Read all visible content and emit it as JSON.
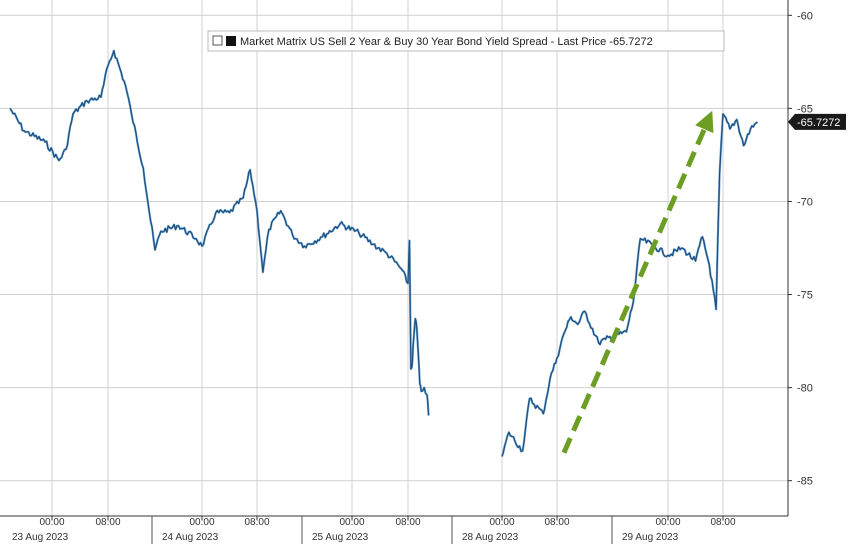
{
  "chart_data": {
    "type": "line",
    "title": "",
    "legend": {
      "text": "Market Matrix US Sell 2 Year & Buy 30 Year Bond Yield Spread - Last Price -65.7272",
      "placement": "top-center"
    },
    "last_price_label": "-65.7272",
    "last_price": -65.7272,
    "y_axis": {
      "side": "right",
      "ylim": [
        -85.5,
        -59.5
      ],
      "ticks": [
        -60,
        -65,
        -70,
        -75,
        -80,
        -85
      ],
      "tick_labels": [
        "-60",
        "-65",
        "-70",
        "-75",
        "-80",
        "-85"
      ]
    },
    "x_axis": {
      "ticks": [
        {
          "time": "23 Aug 2023 00:00",
          "label": "00:00"
        },
        {
          "time": "23 Aug 2023 08:00",
          "label": "08:00"
        },
        {
          "time": "24 Aug 2023 00:00",
          "label": "00:00"
        },
        {
          "time": "24 Aug 2023 08:00",
          "label": "08:00"
        },
        {
          "time": "25 Aug 2023 00:00",
          "label": "00:00"
        },
        {
          "time": "25 Aug 2023 08:00",
          "label": "08:00"
        },
        {
          "time": "28 Aug 2023 00:00",
          "label": "00:00"
        },
        {
          "time": "28 Aug 2023 08:00",
          "label": "08:00"
        },
        {
          "time": "29 Aug 2023 00:00",
          "label": "00:00"
        },
        {
          "time": "29 Aug 2023 08:00",
          "label": "08:00"
        }
      ],
      "date_labels": [
        "23 Aug 2023",
        "24 Aug 2023",
        "25 Aug 2023",
        "28 Aug 2023",
        "29 Aug 2023"
      ]
    },
    "grid": true,
    "series": [
      {
        "color": "#1f4e79",
        "points": [
          [
            "22 Aug 2023 18:00",
            -65.0
          ],
          [
            "22 Aug 2023 20:00",
            -66.2
          ],
          [
            "22 Aug 2023 23:00",
            -66.8
          ],
          [
            "23 Aug 2023 01:00",
            -67.8
          ],
          [
            "23 Aug 2023 02:00",
            -67.2
          ],
          [
            "23 Aug 2023 03:00",
            -65.3
          ],
          [
            "23 Aug 2023 05:00",
            -64.6
          ],
          [
            "23 Aug 2023 07:00",
            -64.4
          ],
          [
            "23 Aug 2023 08:00",
            -62.7
          ],
          [
            "23 Aug 2023 09:00",
            -61.9
          ],
          [
            "23 Aug 2023 11:00",
            -63.8
          ],
          [
            "23 Aug 2023 12:00",
            -65.3
          ],
          [
            "23 Aug 2023 14:00",
            -68.2
          ],
          [
            "23 Aug 2023 15:00",
            -70.5
          ],
          [
            "23 Aug 2023 16:00",
            -72.6
          ],
          [
            "23 Aug 2023 17:00",
            -71.6
          ],
          [
            "23 Aug 2023 20:00",
            -71.3
          ],
          [
            "23 Aug 2023 23:00",
            -72.0
          ],
          [
            "24 Aug 2023 00:00",
            -72.4
          ],
          [
            "24 Aug 2023 02:00",
            -70.6
          ],
          [
            "24 Aug 2023 04:00",
            -70.6
          ],
          [
            "24 Aug 2023 06:00",
            -69.8
          ],
          [
            "24 Aug 2023 07:00",
            -68.3
          ],
          [
            "24 Aug 2023 08:00",
            -70.5
          ],
          [
            "24 Aug 2023 09:00",
            -73.8
          ],
          [
            "24 Aug 2023 10:00",
            -71.5
          ],
          [
            "24 Aug 2023 12:00",
            -70.5
          ],
          [
            "24 Aug 2023 14:00",
            -71.8
          ],
          [
            "24 Aug 2023 16:00",
            -72.4
          ],
          [
            "24 Aug 2023 19:00",
            -71.9
          ],
          [
            "24 Aug 2023 22:00",
            -71.2
          ],
          [
            "25 Aug 2023 01:00",
            -71.7
          ],
          [
            "25 Aug 2023 03:00",
            -72.3
          ],
          [
            "25 Aug 2023 05:00",
            -72.8
          ],
          [
            "25 Aug 2023 07:00",
            -73.6
          ],
          [
            "25 Aug 2023 08:00",
            -74.4
          ],
          [
            "25 Aug 2023 09:00",
            -72.1
          ],
          [
            "25 Aug 2023 10:00",
            -79.0
          ],
          [
            "25 Aug 2023 11:00",
            -78.6
          ],
          [
            "25 Aug 2023 12:00",
            -77.2
          ],
          [
            "25 Aug 2023 13:00",
            -76.3
          ],
          [
            "25 Aug 2023 14:00",
            -76.8
          ],
          [
            "25 Aug 2023 15:00",
            -78.2
          ],
          [
            "25 Aug 2023 16:00",
            -79.8
          ],
          [
            "25 Aug 2023 17:00",
            -80.2
          ],
          [
            "25 Aug 2023 19:00",
            -80.0
          ],
          [
            "25 Aug 2023 21:00",
            -80.4
          ],
          [
            "25 Aug 2023 22:00",
            -81.5
          ],
          null,
          [
            "28 Aug 2023 00:00",
            -83.7
          ],
          [
            "28 Aug 2023 01:00",
            -82.4
          ],
          [
            "28 Aug 2023 03:00",
            -83.4
          ],
          [
            "28 Aug 2023 04:00",
            -80.6
          ],
          [
            "28 Aug 2023 06:00",
            -81.4
          ],
          [
            "28 Aug 2023 07:00",
            -79.5
          ],
          [
            "28 Aug 2023 08:00",
            -78.4
          ],
          [
            "28 Aug 2023 09:00",
            -77.1
          ],
          [
            "28 Aug 2023 10:00",
            -76.2
          ],
          [
            "28 Aug 2023 11:00",
            -76.6
          ],
          [
            "28 Aug 2023 12:00",
            -75.9
          ],
          [
            "28 Aug 2023 14:00",
            -77.6
          ],
          [
            "28 Aug 2023 15:00",
            -77.4
          ],
          [
            "28 Aug 2023 18:00",
            -77.0
          ],
          [
            "28 Aug 2023 19:00",
            -75.4
          ],
          [
            "28 Aug 2023 20:00",
            -72.0
          ],
          [
            "28 Aug 2023 22:00",
            -72.4
          ],
          [
            "29 Aug 2023 00:00",
            -72.9
          ],
          [
            "29 Aug 2023 02:00",
            -72.5
          ],
          [
            "29 Aug 2023 04:00",
            -73.2
          ],
          [
            "29 Aug 2023 05:00",
            -71.9
          ],
          [
            "29 Aug 2023 06:00",
            -73.4
          ],
          [
            "29 Aug 2023 07:00",
            -75.8
          ],
          [
            "29 Aug 2023 07:30",
            -68.5
          ],
          [
            "29 Aug 2023 08:00",
            -65.3
          ],
          [
            "29 Aug 2023 09:00",
            -66.1
          ],
          [
            "29 Aug 2023 10:00",
            -65.6
          ],
          [
            "29 Aug 2023 11:00",
            -67.0
          ],
          [
            "29 Aug 2023 12:00",
            -66.1
          ],
          [
            "29 Aug 2023 13:00",
            -65.73
          ]
        ]
      }
    ],
    "annotations": [
      {
        "type": "arrow",
        "style": "dashed",
        "color": "#6b9e23",
        "from": [
          "28 Aug 2023 09:00",
          -83.5
        ],
        "to": [
          "29 Aug 2023 06:00",
          -65.5
        ]
      }
    ]
  }
}
